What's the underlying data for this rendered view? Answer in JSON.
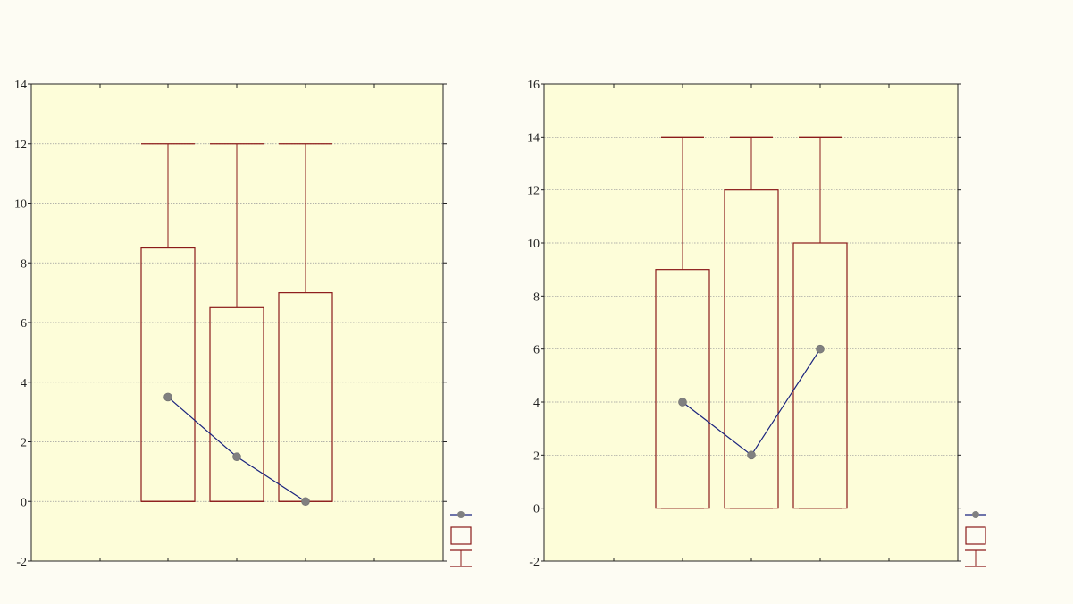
{
  "colors": {
    "page_background": "#fdfcf3",
    "plot_background": "#fdfdd9",
    "box": "#8b1a1a",
    "median_line": "#1a237e",
    "median_marker": "#808080",
    "grid": "#9a9a9a",
    "axis": "#222222"
  },
  "icons": {
    "legend_median": "line-with-dot-icon",
    "legend_box": "box-icon",
    "legend_whisker": "whisker-icon"
  },
  "chart_data": [
    {
      "type": "boxplot",
      "categories": [
        "",
        "",
        ""
      ],
      "ylim": [
        -2,
        14
      ],
      "yticks": [
        "-2",
        "0",
        "2",
        "4",
        "6",
        "8",
        "10",
        "12",
        "14"
      ],
      "grid": true,
      "legend": "bottom-right",
      "series": [
        {
          "median": 3.5,
          "q1": 0,
          "q3": 8.5,
          "min": 0,
          "max": 12
        },
        {
          "median": 1.5,
          "q1": 0,
          "q3": 6.5,
          "min": 0,
          "max": 12
        },
        {
          "median": 0,
          "q1": 0,
          "q3": 7,
          "min": 0,
          "max": 12
        }
      ]
    },
    {
      "type": "boxplot",
      "categories": [
        "",
        "",
        ""
      ],
      "ylim": [
        -2,
        16
      ],
      "yticks": [
        "-2",
        "0",
        "2",
        "4",
        "6",
        "8",
        "10",
        "12",
        "14",
        "16"
      ],
      "grid": true,
      "legend": "bottom-right",
      "series": [
        {
          "median": 4,
          "q1": 0,
          "q3": 9,
          "min": 0,
          "max": 14
        },
        {
          "median": 2,
          "q1": 0,
          "q3": 12,
          "min": 0,
          "max": 14
        },
        {
          "median": 6,
          "q1": 0,
          "q3": 10,
          "min": 0,
          "max": 14
        }
      ]
    }
  ]
}
